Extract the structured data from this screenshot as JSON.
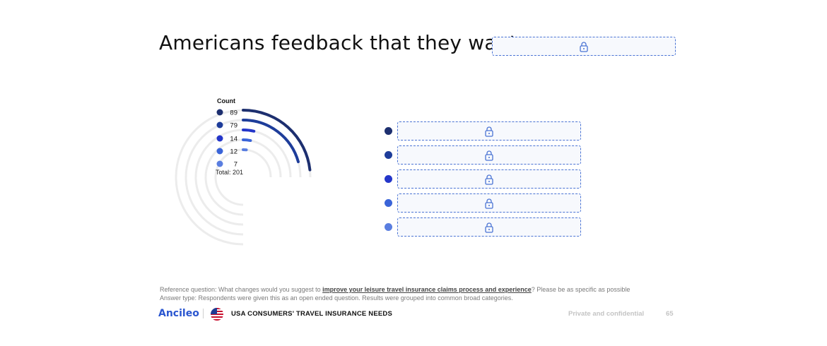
{
  "title": "Americans feedback that they want",
  "chart_data": {
    "type": "radial-bar",
    "legend_title": "Count",
    "categories": [
      "",
      "",
      "",
      "",
      ""
    ],
    "values": [
      89,
      79,
      14,
      12,
      7
    ],
    "colors": [
      "#1d2f6f",
      "#1e3d9a",
      "#2436c9",
      "#3a64d8",
      "#5a7ee0"
    ],
    "total_label": "Total: 201",
    "max": 201
  },
  "footer": {
    "reference_prefix": "Reference question: What changes would you suggest to ",
    "reference_bold": "improve your leisure travel insurance claims process and experience",
    "reference_suffix": "? Please be as specific as possible",
    "answer_type": "Answer type: Respondents were given this as an open ended question. Results were grouped into common broad categories.",
    "brand": "Ancileo",
    "report_title": "USA CONSUMERS' TRAVEL INSURANCE NEEDS",
    "confidential": "Private and confidential",
    "page_number": "65"
  }
}
